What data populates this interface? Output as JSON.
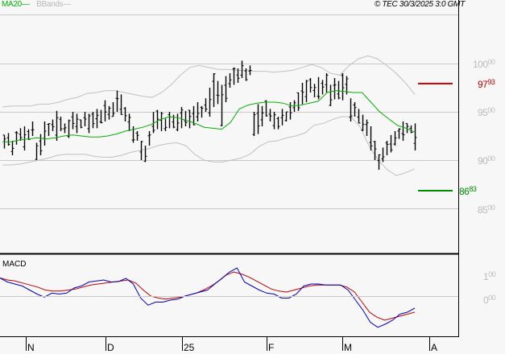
{
  "header": {
    "legend_ma": "MA20",
    "legend_bbands": "BBands",
    "copyright": "© TEC 30/3/2025 3:0 GMT"
  },
  "price_panel": {
    "y_labels": [
      {
        "int": "100",
        "dec": "00",
        "value": 10000
      },
      {
        "int": "95",
        "dec": "00",
        "value": 9500
      },
      {
        "int": "90",
        "dec": "00",
        "value": 9000
      },
      {
        "int": "85",
        "dec": "00",
        "value": 8500
      }
    ],
    "resistance": {
      "int": "97",
      "dec": "93",
      "value": 9793,
      "color": "#c00000"
    },
    "support": {
      "int": "86",
      "dec": "83",
      "value": 8683,
      "color": "#008c00"
    }
  },
  "macd_panel": {
    "title": "MACD",
    "y_labels": [
      {
        "int": "1",
        "dec": "00",
        "value": 1.0
      },
      {
        "int": "0",
        "dec": "00",
        "value": 0.0
      }
    ]
  },
  "x_axis": {
    "labels": [
      "N",
      "D",
      "25",
      "F",
      "M",
      "A"
    ]
  },
  "colors": {
    "bars": "#000000",
    "ma20": "#00b000",
    "bbands": "#c0c0c0",
    "macd_line": "#0000c0",
    "signal_line": "#c00000",
    "grid": "#c8c8c8"
  },
  "chart_data": [
    {
      "type": "ohlc",
      "title": "Price with MA20 and Bollinger Bands",
      "legend": [
        "MA20",
        "BBands"
      ],
      "x_ticks": [
        "N",
        "D",
        "25",
        "F",
        "M",
        "A"
      ],
      "ylim": [
        8100,
        10300
      ],
      "y_ticks": [
        8500,
        9000,
        9500,
        10000
      ],
      "grid": true,
      "annotations": [
        {
          "label": "97.93",
          "value": 9793,
          "color": "#c00000"
        },
        {
          "label": "86.83",
          "value": 8683,
          "color": "#008c00"
        }
      ],
      "bars_hl": [
        [
          9260,
          9120
        ],
        [
          9280,
          9150
        ],
        [
          9200,
          9050
        ],
        [
          9300,
          9160
        ],
        [
          9330,
          9200
        ],
        [
          9350,
          9100
        ],
        [
          9320,
          9210
        ],
        [
          9400,
          9250
        ],
        [
          9180,
          9000
        ],
        [
          9270,
          9050
        ],
        [
          9400,
          9150
        ],
        [
          9380,
          9250
        ],
        [
          9420,
          9300
        ],
        [
          9510,
          9200
        ],
        [
          9450,
          9300
        ],
        [
          9380,
          9280
        ],
        [
          9420,
          9230
        ],
        [
          9500,
          9320
        ],
        [
          9480,
          9280
        ],
        [
          9420,
          9330
        ],
        [
          9500,
          9350
        ],
        [
          9480,
          9280
        ],
        [
          9500,
          9330
        ],
        [
          9530,
          9330
        ],
        [
          9520,
          9380
        ],
        [
          9620,
          9400
        ],
        [
          9560,
          9420
        ],
        [
          9600,
          9450
        ],
        [
          9720,
          9500
        ],
        [
          9680,
          9470
        ],
        [
          9550,
          9400
        ],
        [
          9480,
          9300
        ],
        [
          9350,
          9180
        ],
        [
          9300,
          9200
        ],
        [
          9200,
          9000
        ],
        [
          9150,
          8980
        ],
        [
          9300,
          9150
        ],
        [
          9500,
          9280
        ],
        [
          9520,
          9320
        ],
        [
          9500,
          9300
        ],
        [
          9430,
          9300
        ],
        [
          9500,
          9330
        ],
        [
          9470,
          9330
        ],
        [
          9480,
          9300
        ],
        [
          9550,
          9330
        ],
        [
          9510,
          9350
        ],
        [
          9520,
          9330
        ],
        [
          9560,
          9360
        ],
        [
          9600,
          9400
        ],
        [
          9560,
          9440
        ],
        [
          9640,
          9500
        ],
        [
          9750,
          9450
        ],
        [
          9900,
          9550
        ],
        [
          9820,
          9580
        ],
        [
          9780,
          9350
        ],
        [
          9870,
          9600
        ],
        [
          9900,
          9750
        ],
        [
          9960,
          9780
        ],
        [
          9950,
          9800
        ],
        [
          10030,
          9850
        ],
        [
          9950,
          9820
        ],
        [
          9980,
          9880
        ],
        [
          9500,
          9250
        ],
        [
          9580,
          9270
        ],
        [
          9560,
          9350
        ],
        [
          9620,
          9450
        ],
        [
          9530,
          9400
        ],
        [
          9500,
          9320
        ],
        [
          9450,
          9320
        ],
        [
          9530,
          9360
        ],
        [
          9500,
          9400
        ],
        [
          9600,
          9420
        ],
        [
          9620,
          9500
        ],
        [
          9700,
          9510
        ],
        [
          9800,
          9580
        ],
        [
          9830,
          9600
        ],
        [
          9850,
          9700
        ],
        [
          9790,
          9650
        ],
        [
          9860,
          9630
        ],
        [
          9830,
          9680
        ],
        [
          9900,
          9700
        ],
        [
          9780,
          9560
        ],
        [
          9850,
          9630
        ],
        [
          9820,
          9630
        ],
        [
          9900,
          9620
        ],
        [
          9870,
          9680
        ],
        [
          9640,
          9400
        ],
        [
          9600,
          9450
        ],
        [
          9530,
          9380
        ],
        [
          9470,
          9300
        ],
        [
          9420,
          9250
        ],
        [
          9350,
          9100
        ],
        [
          9200,
          9000
        ],
        [
          9060,
          8900
        ],
        [
          9130,
          8980
        ],
        [
          9200,
          9050
        ],
        [
          9260,
          9080
        ],
        [
          9300,
          9150
        ],
        [
          9330,
          9220
        ],
        [
          9400,
          9200
        ],
        [
          9380,
          9280
        ],
        [
          9360,
          9280
        ],
        [
          9380,
          9100
        ]
      ],
      "ma20": [
        9190,
        9190,
        9210,
        9220,
        9230,
        9220,
        9230,
        9250,
        9260,
        9250,
        9240,
        9240,
        9250,
        9270,
        9300,
        9320,
        9340,
        9370,
        9420,
        9450,
        9440,
        9410,
        9380,
        9340,
        9330,
        9320,
        9390,
        9530,
        9570,
        9590,
        9600,
        9600,
        9590,
        9560,
        9570,
        9590,
        9610,
        9700,
        9720,
        9710,
        9700,
        9700,
        9600,
        9500,
        9430,
        9360,
        9330,
        9290
      ],
      "bb_upper": [
        9550,
        9560,
        9560,
        9560,
        9580,
        9580,
        9600,
        9630,
        9650,
        9690,
        9700,
        9720,
        9720,
        9700,
        9680,
        9660,
        9650,
        9700,
        9780,
        9880,
        9960,
        9980,
        9960,
        9940,
        9940,
        9930,
        9930,
        9920,
        9920,
        9910,
        9920,
        9930,
        9960,
        9990,
        9960,
        9900,
        9880,
        9980,
        10050,
        10080,
        10050,
        9980,
        9900,
        9800,
        9680
      ],
      "bb_lower": [
        8950,
        8950,
        8960,
        8980,
        9000,
        9020,
        9050,
        9060,
        9060,
        9060,
        9040,
        9030,
        9030,
        9050,
        9080,
        9100,
        9120,
        9150,
        9170,
        9180,
        9150,
        9060,
        9000,
        8980,
        8980,
        9000,
        9020,
        9060,
        9140,
        9190,
        9200,
        9230,
        9250,
        9280,
        9360,
        9380,
        9420,
        9450,
        9450,
        9350,
        9150,
        9000,
        8900,
        8840,
        8870,
        8910
      ],
      "xlabel": "",
      "ylabel": ""
    },
    {
      "type": "line",
      "title": "MACD",
      "series": [
        {
          "name": "MACD",
          "color": "#0000c0",
          "values": [
            0.9,
            0.7,
            0.6,
            0.5,
            0.3,
            0.1,
            -0.05,
            0.15,
            0.1,
            0.15,
            0.4,
            0.5,
            0.7,
            0.75,
            0.8,
            0.7,
            0.72,
            0.88,
            0.6,
            -0.1,
            -0.45,
            -0.3,
            -0.3,
            -0.2,
            -0.15,
            0.0,
            0.1,
            0.2,
            0.3,
            0.6,
            0.9,
            1.2,
            1.4,
            0.7,
            0.5,
            0.3,
            0.15,
            0.1,
            -0.1,
            -0.1,
            0.1,
            0.5,
            0.6,
            0.6,
            0.55,
            0.55,
            0.55,
            0.3,
            -0.2,
            -0.7,
            -1.3,
            -1.55,
            -1.4,
            -1.2,
            -0.9,
            -0.8,
            -0.6
          ]
        },
        {
          "name": "Signal",
          "color": "#c00000",
          "values": [
            0.9,
            0.8,
            0.75,
            0.65,
            0.55,
            0.45,
            0.3,
            0.25,
            0.25,
            0.3,
            0.35,
            0.45,
            0.55,
            0.6,
            0.65,
            0.7,
            0.75,
            0.8,
            0.65,
            0.3,
            0.0,
            -0.1,
            -0.15,
            -0.1,
            -0.05,
            0.05,
            0.15,
            0.3,
            0.5,
            0.75,
            1.05,
            1.2,
            1.1,
            0.95,
            0.75,
            0.55,
            0.35,
            0.25,
            0.2,
            0.3,
            0.4,
            0.5,
            0.55,
            0.55,
            0.55,
            0.55,
            0.45,
            0.2,
            -0.3,
            -0.8,
            -1.05,
            -1.2,
            -1.1,
            -1.0,
            -0.9,
            -0.8
          ]
        }
      ],
      "y_ticks": [
        0.0,
        1.0
      ],
      "zero_line": true
    }
  ]
}
